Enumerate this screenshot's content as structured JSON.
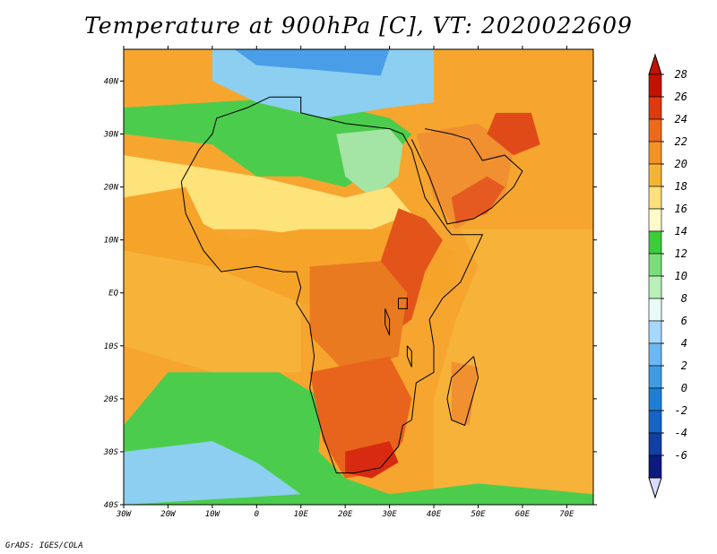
{
  "title": "Temperature at 900hPa [C], VT: 2020022609",
  "credit": "GrADS: IGES/COLA",
  "map": {
    "lon_range": [
      -30,
      76
    ],
    "lat_range": [
      -40,
      46
    ],
    "lat_ticks": [
      {
        "value": 40,
        "label": "40N"
      },
      {
        "value": 30,
        "label": "30N"
      },
      {
        "value": 20,
        "label": "20N"
      },
      {
        "value": 10,
        "label": "10N"
      },
      {
        "value": 0,
        "label": "EQ"
      },
      {
        "value": -10,
        "label": "10S"
      },
      {
        "value": -20,
        "label": "20S"
      },
      {
        "value": -30,
        "label": "30S"
      },
      {
        "value": -40,
        "label": "40S"
      }
    ],
    "lon_ticks": [
      {
        "value": -30,
        "label": "30W"
      },
      {
        "value": -20,
        "label": "20W"
      },
      {
        "value": -10,
        "label": "10W"
      },
      {
        "value": 0,
        "label": "0"
      },
      {
        "value": 10,
        "label": "10E"
      },
      {
        "value": 20,
        "label": "20E"
      },
      {
        "value": 30,
        "label": "30E"
      },
      {
        "value": 40,
        "label": "40E"
      },
      {
        "value": 50,
        "label": "50E"
      },
      {
        "value": 60,
        "label": "60E"
      },
      {
        "value": 70,
        "label": "70E"
      }
    ],
    "regions": [
      {
        "name": "sahara-north",
        "color": "#4ccc4c",
        "points": [
          [
            -30,
            35
          ],
          [
            -10,
            36
          ],
          [
            10,
            37
          ],
          [
            30,
            33
          ],
          [
            35,
            30
          ],
          [
            30,
            25
          ],
          [
            20,
            20
          ],
          [
            10,
            22
          ],
          [
            0,
            22
          ],
          [
            -10,
            28
          ],
          [
            -30,
            30
          ]
        ]
      },
      {
        "name": "egypt-libya",
        "color": "#a4e4a4",
        "points": [
          [
            18,
            30
          ],
          [
            30,
            31
          ],
          [
            33,
            28
          ],
          [
            32,
            22
          ],
          [
            26,
            18
          ],
          [
            20,
            22
          ]
        ]
      },
      {
        "name": "mediterranean",
        "color": "#8ccff0",
        "points": [
          [
            -10,
            46
          ],
          [
            40,
            46
          ],
          [
            40,
            36
          ],
          [
            30,
            35
          ],
          [
            15,
            33
          ],
          [
            0,
            36
          ],
          [
            -10,
            40
          ]
        ]
      },
      {
        "name": "europe-cold",
        "color": "#4a9ee8",
        "points": [
          [
            -5,
            46
          ],
          [
            30,
            46
          ],
          [
            28,
            41
          ],
          [
            15,
            42
          ],
          [
            0,
            43
          ]
        ]
      },
      {
        "name": "west-sahel",
        "color": "#fee27a",
        "points": [
          [
            -30,
            26
          ],
          [
            0,
            22
          ],
          [
            20,
            18
          ],
          [
            30,
            20
          ],
          [
            35,
            15
          ],
          [
            20,
            10
          ],
          [
            0,
            12
          ],
          [
            -20,
            12
          ],
          [
            -30,
            15
          ]
        ]
      },
      {
        "name": "west-africa-warm",
        "color": "#f6a32a",
        "points": [
          [
            -30,
            18
          ],
          [
            -16,
            20
          ],
          [
            -12,
            13
          ],
          [
            -5,
            10
          ],
          [
            10,
            12
          ],
          [
            30,
            12
          ],
          [
            45,
            8
          ],
          [
            45,
            0
          ],
          [
            35,
            -2
          ],
          [
            10,
            -2
          ],
          [
            -10,
            5
          ],
          [
            -30,
            8
          ]
        ]
      },
      {
        "name": "atlantic-eq",
        "color": "#f7b23a",
        "points": [
          [
            -30,
            8
          ],
          [
            -10,
            5
          ],
          [
            10,
            -2
          ],
          [
            10,
            -15
          ],
          [
            -10,
            -15
          ],
          [
            -30,
            -10
          ]
        ]
      },
      {
        "name": "east-africa-hot",
        "color": "#e3541a",
        "points": [
          [
            32,
            16
          ],
          [
            38,
            14
          ],
          [
            42,
            10
          ],
          [
            38,
            4
          ],
          [
            35,
            -5
          ],
          [
            30,
            -8
          ],
          [
            25,
            -2
          ],
          [
            28,
            6
          ]
        ]
      },
      {
        "name": "congo-warm",
        "color": "#ea7a20",
        "points": [
          [
            12,
            5
          ],
          [
            28,
            6
          ],
          [
            34,
            0
          ],
          [
            32,
            -12
          ],
          [
            20,
            -15
          ],
          [
            12,
            -8
          ]
        ]
      },
      {
        "name": "indian-ocean",
        "color": "#f7b23a",
        "points": [
          [
            46,
            12
          ],
          [
            76,
            12
          ],
          [
            76,
            -40
          ],
          [
            40,
            -40
          ],
          [
            40,
            -20
          ],
          [
            45,
            -5
          ],
          [
            50,
            5
          ]
        ]
      },
      {
        "name": "arabia",
        "color": "#f09030",
        "points": [
          [
            36,
            30
          ],
          [
            50,
            32
          ],
          [
            58,
            27
          ],
          [
            56,
            18
          ],
          [
            45,
            12
          ],
          [
            40,
            18
          ]
        ]
      },
      {
        "name": "arabia-hot",
        "color": "#e55a20",
        "points": [
          [
            44,
            18
          ],
          [
            52,
            22
          ],
          [
            56,
            20
          ],
          [
            52,
            15
          ],
          [
            45,
            13
          ]
        ]
      },
      {
        "name": "iran-hot",
        "color": "#e04a18",
        "points": [
          [
            54,
            34
          ],
          [
            62,
            34
          ],
          [
            64,
            28
          ],
          [
            58,
            26
          ],
          [
            52,
            30
          ]
        ]
      },
      {
        "name": "south-atlantic-cool",
        "color": "#4ccc4c",
        "points": [
          [
            -20,
            -15
          ],
          [
            5,
            -15
          ],
          [
            15,
            -20
          ],
          [
            14,
            -30
          ],
          [
            20,
            -35
          ],
          [
            30,
            -38
          ],
          [
            50,
            -36
          ],
          [
            76,
            -38
          ],
          [
            76,
            -40
          ],
          [
            -30,
            -40
          ],
          [
            -30,
            -25
          ]
        ]
      },
      {
        "name": "south-atlantic-cold",
        "color": "#8ccff0",
        "points": [
          [
            -30,
            -30
          ],
          [
            -10,
            -28
          ],
          [
            0,
            -32
          ],
          [
            10,
            -38
          ],
          [
            -30,
            -40
          ]
        ]
      },
      {
        "name": "southern-africa",
        "color": "#e8641c",
        "points": [
          [
            12,
            -15
          ],
          [
            30,
            -12
          ],
          [
            35,
            -20
          ],
          [
            33,
            -28
          ],
          [
            28,
            -34
          ],
          [
            20,
            -35
          ],
          [
            15,
            -28
          ]
        ]
      },
      {
        "name": "south-africa-hot",
        "color": "#d82a10",
        "points": [
          [
            20,
            -30
          ],
          [
            30,
            -28
          ],
          [
            32,
            -32
          ],
          [
            26,
            -35
          ],
          [
            20,
            -34
          ]
        ]
      },
      {
        "name": "madagascar",
        "color": "#f09030",
        "points": [
          [
            44,
            -13
          ],
          [
            50,
            -14
          ],
          [
            48,
            -25
          ],
          [
            44,
            -24
          ]
        ]
      }
    ],
    "coastline": [
      [
        -17,
        21
      ],
      [
        -16,
        15
      ],
      [
        -12,
        8
      ],
      [
        -8,
        4
      ],
      [
        0,
        5
      ],
      [
        6,
        4
      ],
      [
        9,
        4
      ],
      [
        10,
        1
      ],
      [
        9,
        -2
      ],
      [
        12,
        -6
      ],
      [
        13,
        -12
      ],
      [
        12,
        -18
      ],
      [
        15,
        -27
      ],
      [
        18,
        -34
      ],
      [
        22,
        -34
      ],
      [
        28,
        -33
      ],
      [
        32,
        -29
      ],
      [
        33,
        -25
      ],
      [
        35,
        -24
      ],
      [
        36,
        -17
      ],
      [
        40,
        -15
      ],
      [
        40,
        -10
      ],
      [
        39,
        -5
      ],
      [
        42,
        -1
      ],
      [
        46,
        2
      ],
      [
        51,
        11
      ],
      [
        44,
        11
      ],
      [
        43,
        12
      ],
      [
        38,
        18
      ],
      [
        35,
        27
      ],
      [
        33,
        30
      ],
      [
        30,
        31
      ],
      [
        20,
        32
      ],
      [
        10,
        34
      ],
      [
        10,
        37
      ],
      [
        3,
        37
      ],
      [
        -2,
        35
      ],
      [
        -9,
        33
      ],
      [
        -10,
        30
      ],
      [
        -13,
        27
      ],
      [
        -17,
        21
      ]
    ],
    "madagascar_outline": [
      [
        49,
        -12
      ],
      [
        50,
        -16
      ],
      [
        47,
        -25
      ],
      [
        44,
        -24
      ],
      [
        43,
        -20
      ],
      [
        44,
        -16
      ],
      [
        49,
        -12
      ]
    ],
    "arabia_outline": [
      [
        35,
        29
      ],
      [
        39,
        22
      ],
      [
        43,
        13
      ],
      [
        49,
        14
      ],
      [
        53,
        16
      ],
      [
        58,
        20
      ],
      [
        60,
        23
      ],
      [
        56,
        26
      ],
      [
        51,
        25
      ],
      [
        48,
        29
      ],
      [
        44,
        30
      ],
      [
        38,
        31
      ]
    ],
    "lakes": [
      [
        [
          32,
          -1
        ],
        [
          34,
          -1
        ],
        [
          34,
          -3
        ],
        [
          32,
          -3
        ],
        [
          32,
          -1
        ]
      ],
      [
        [
          29,
          -3
        ],
        [
          30,
          -5
        ],
        [
          30,
          -8
        ],
        [
          29,
          -6
        ],
        [
          29,
          -3
        ]
      ],
      [
        [
          34,
          -10
        ],
        [
          35,
          -11
        ],
        [
          35,
          -14
        ],
        [
          34,
          -12
        ],
        [
          34,
          -10
        ]
      ]
    ],
    "colorbar": {
      "values": [
        "28",
        "26",
        "24",
        "22",
        "20",
        "18",
        "16",
        "14",
        "12",
        "10",
        "8",
        "6",
        "4",
        "2",
        "0",
        "-2",
        "-4",
        "-6"
      ],
      "colors": [
        "#c21200",
        "#df3a0e",
        "#ed6a1b",
        "#f39325",
        "#f5b534",
        "#fde07c",
        "#fffaca",
        "#3ccd3a",
        "#7bde7b",
        "#b8f0b8",
        "#e8fbf9",
        "#a7d8ff",
        "#6bb8f5",
        "#3f9be3",
        "#1c7fd3",
        "#1564c6",
        "#103fa6",
        "#0d1a82"
      ],
      "top_color": "#c21200",
      "bottom_color": "#d9deff"
    }
  }
}
